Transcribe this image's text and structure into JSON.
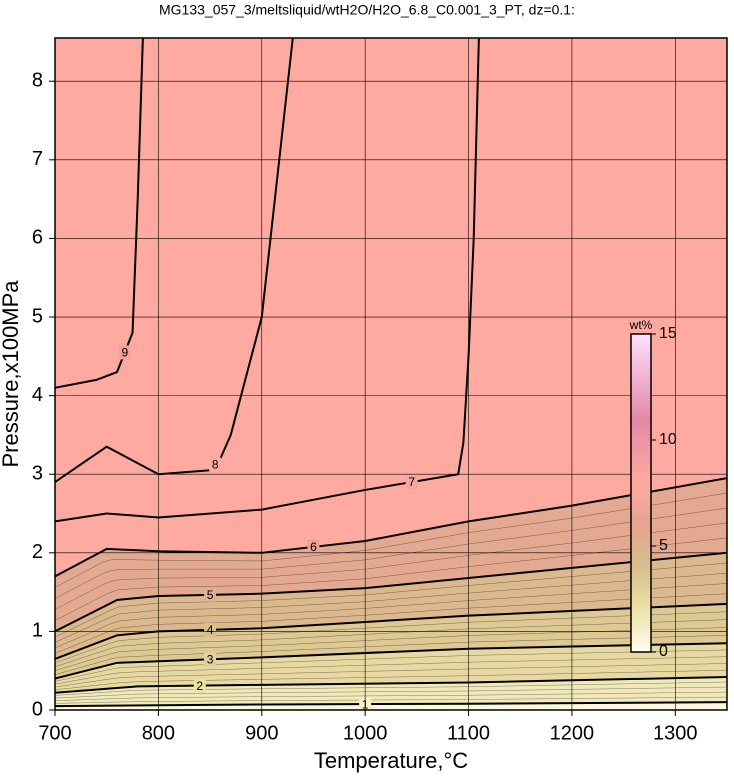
{
  "chart_data": {
    "type": "contour",
    "title": "MG133_057_3/meltsliquid/wtH2O/H2O_6.8_C0.001_3_PT, dz=0.1:",
    "x_label": "Temperature,°C",
    "y_label": "Pressure,x100MPa",
    "xlim": [
      700,
      1350
    ],
    "ylim": [
      0,
      8.55
    ],
    "xticks": [
      700,
      800,
      900,
      1000,
      1100,
      1200,
      1300
    ],
    "yticks": [
      0,
      1,
      2,
      3,
      4,
      5,
      6,
      7,
      8
    ],
    "grid": true,
    "colormap": [
      {
        "value": 0,
        "color": "#fffff0"
      },
      {
        "value": 2,
        "color": "#ece2a8"
      },
      {
        "value": 4,
        "color": "#d9bf8c"
      },
      {
        "value": 6,
        "color": "#e6a392"
      },
      {
        "value": 8,
        "color": "#ffaaa0"
      },
      {
        "value": 11,
        "color": "#e488a8"
      },
      {
        "value": 15,
        "color": "#ffe0ff"
      }
    ],
    "colorbar": {
      "label": "wt%",
      "lim": [
        0,
        15
      ],
      "ticks": [
        0,
        5,
        10,
        15
      ]
    },
    "contours": [
      {
        "level": 8,
        "x": [
          700,
          750,
          800,
          850,
          860,
          870,
          900,
          930
        ],
        "y": [
          2.9,
          3.35,
          3.0,
          3.05,
          3.2,
          3.5,
          5.0,
          8.55
        ]
      },
      {
        "level": 7,
        "x": [
          700,
          750,
          800,
          900,
          1000,
          1090,
          1095,
          1100,
          1105,
          1110
        ],
        "y": [
          2.4,
          2.5,
          2.45,
          2.55,
          2.8,
          3.0,
          3.4,
          4.5,
          6.0,
          8.55
        ]
      },
      {
        "level": 9,
        "x": [
          700,
          740,
          760,
          775,
          780,
          785
        ],
        "y": [
          4.1,
          4.2,
          4.3,
          4.8,
          6.5,
          8.55
        ]
      },
      {
        "level": 6,
        "x": [
          700,
          750,
          800,
          900,
          1000,
          1100,
          1200,
          1350
        ],
        "y": [
          1.7,
          2.05,
          2.02,
          2.0,
          2.15,
          2.4,
          2.6,
          2.95
        ]
      },
      {
        "level": 5,
        "x": [
          700,
          760,
          800,
          900,
          1000,
          1100,
          1350
        ],
        "y": [
          1.0,
          1.4,
          1.45,
          1.48,
          1.55,
          1.68,
          2.0
        ]
      },
      {
        "level": 4,
        "x": [
          700,
          760,
          800,
          900,
          1100,
          1350
        ],
        "y": [
          0.65,
          0.95,
          1.0,
          1.04,
          1.2,
          1.35
        ]
      },
      {
        "level": 3,
        "x": [
          700,
          760,
          800,
          900,
          1100,
          1350
        ],
        "y": [
          0.4,
          0.6,
          0.62,
          0.67,
          0.78,
          0.85
        ]
      },
      {
        "level": 2,
        "x": [
          700,
          780,
          900,
          1100,
          1350
        ],
        "y": [
          0.22,
          0.3,
          0.32,
          0.35,
          0.42
        ]
      },
      {
        "level": 1,
        "x": [
          700,
          900,
          1100,
          1350
        ],
        "y": [
          0.05,
          0.07,
          0.08,
          0.1
        ]
      }
    ]
  }
}
